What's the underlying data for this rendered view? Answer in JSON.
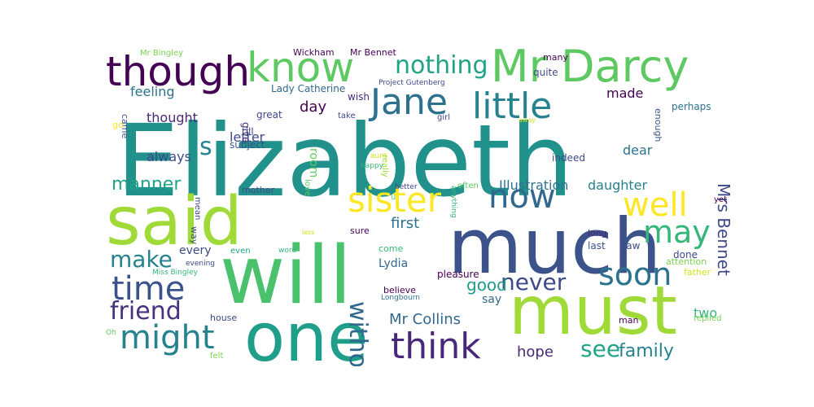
{
  "words": [
    {
      "text": "Elizabeth",
      "color": "#21918c"
    },
    {
      "text": "said",
      "color": "#a0da39"
    },
    {
      "text": "will",
      "color": "#4ac16d"
    },
    {
      "text": "much",
      "color": "#3b528b"
    },
    {
      "text": "one",
      "color": "#1f9e89"
    },
    {
      "text": "must",
      "color": "#a0da39"
    },
    {
      "text": "Mr Darcy",
      "color": "#5ec962"
    },
    {
      "text": "though",
      "color": "#440154"
    },
    {
      "text": "know",
      "color": "#5ec962"
    },
    {
      "text": "nothing",
      "color": "#20a386"
    },
    {
      "text": "Jane",
      "color": "#2c728e"
    },
    {
      "text": "little",
      "color": "#26828e"
    },
    {
      "text": "sister",
      "color": "#fde725"
    },
    {
      "text": "now",
      "color": "#31688e"
    },
    {
      "text": "well",
      "color": "#fde725"
    },
    {
      "text": "may",
      "color": "#35b779"
    },
    {
      "text": "time",
      "color": "#3b528b"
    },
    {
      "text": "might",
      "color": "#26828e"
    },
    {
      "text": "think",
      "color": "#482878"
    },
    {
      "text": "soon",
      "color": "#2c728e"
    },
    {
      "text": "friend",
      "color": "#46327e"
    },
    {
      "text": "make",
      "color": "#26828e"
    },
    {
      "text": "never",
      "color": "#3e4989"
    },
    {
      "text": "without",
      "color": "#31688e"
    },
    {
      "text": "s",
      "color": "#26828e"
    },
    {
      "text": "see",
      "color": "#20a386"
    },
    {
      "text": "family",
      "color": "#26828e"
    },
    {
      "text": "Mrs Bennet",
      "color": "#3e4989"
    },
    {
      "text": "manner",
      "color": "#20a386"
    },
    {
      "text": "day",
      "color": "#440154"
    },
    {
      "text": "good",
      "color": "#1f9e89"
    },
    {
      "text": "Mr Collins",
      "color": "#31688e"
    },
    {
      "text": "hope",
      "color": "#482878"
    },
    {
      "text": "first",
      "color": "#2c728e"
    },
    {
      "text": "Illustration",
      "color": "#2c728e"
    },
    {
      "text": "daughter",
      "color": "#26828e"
    },
    {
      "text": "thought",
      "color": "#482878"
    },
    {
      "text": "feeling",
      "color": "#2c728e"
    },
    {
      "text": "Lydia",
      "color": "#31688e"
    },
    {
      "text": "dear",
      "color": "#2c728e"
    },
    {
      "text": "made",
      "color": "#440154"
    },
    {
      "text": "two",
      "color": "#35b779"
    },
    {
      "text": "always",
      "color": "#3e4989"
    },
    {
      "text": "letter",
      "color": "#3e4989"
    },
    {
      "text": "every",
      "color": "#3e4989"
    },
    {
      "text": "room",
      "color": "#5ec962"
    },
    {
      "text": "pleasure",
      "color": "#440154"
    },
    {
      "text": "say",
      "color": "#31688e"
    },
    {
      "text": "Lady Catherine",
      "color": "#31688e"
    },
    {
      "text": "Mr Bingley",
      "color": "#7ad151"
    },
    {
      "text": "Wickham",
      "color": "#440154"
    },
    {
      "text": "Mr Bennet",
      "color": "#440154"
    },
    {
      "text": "many",
      "color": "#440154"
    },
    {
      "text": "quite",
      "color": "#3e4989"
    },
    {
      "text": "enough",
      "color": "#3b528b"
    },
    {
      "text": "perhaps",
      "color": "#2c728e"
    },
    {
      "text": "Project Gutenberg",
      "color": "#3e4989"
    },
    {
      "text": "wish",
      "color": "#472d7b"
    },
    {
      "text": "give",
      "color": "#472d7b"
    },
    {
      "text": "great",
      "color": "#3e4989"
    },
    {
      "text": "till",
      "color": "#3e4989"
    },
    {
      "text": "subject",
      "color": "#3b528b"
    },
    {
      "text": "take",
      "color": "#3e4989"
    },
    {
      "text": "girl",
      "color": "#3e4989"
    },
    {
      "text": "really",
      "color": "#a0da39"
    },
    {
      "text": "aunt",
      "color": "#d2e21b"
    },
    {
      "text": "happy",
      "color": "#35b779"
    },
    {
      "text": "love",
      "color": "#5ec962"
    },
    {
      "text": "anything",
      "color": "#35b779"
    },
    {
      "text": "away",
      "color": "#d2e21b"
    },
    {
      "text": "indeed",
      "color": "#3e4989"
    },
    {
      "text": "came",
      "color": "#3b528b"
    },
    {
      "text": "go",
      "color": "#fde725"
    },
    {
      "text": "mean",
      "color": "#3e4989"
    },
    {
      "text": "mother",
      "color": "#3e4989"
    },
    {
      "text": "better",
      "color": "#3e4989"
    },
    {
      "text": "often",
      "color": "#5ec962"
    },
    {
      "text": "u",
      "color": "#5ec962"
    },
    {
      "text": "yet",
      "color": "#440154"
    },
    {
      "text": "way",
      "color": "#3e4989"
    },
    {
      "text": "less",
      "color": "#d2e21b"
    },
    {
      "text": "sure",
      "color": "#440154"
    },
    {
      "text": "long",
      "color": "#482878"
    },
    {
      "text": "last",
      "color": "#3b528b"
    },
    {
      "text": "saw",
      "color": "#3e4989"
    },
    {
      "text": "done",
      "color": "#3e4989"
    },
    {
      "text": "attention",
      "color": "#7ad151"
    },
    {
      "text": "father",
      "color": "#d2e21b"
    },
    {
      "text": "even",
      "color": "#20a386"
    },
    {
      "text": "word",
      "color": "#35b779"
    },
    {
      "text": "come",
      "color": "#35b779"
    },
    {
      "text": "evening",
      "color": "#3e4989"
    },
    {
      "text": "Miss Bingley",
      "color": "#35b779"
    },
    {
      "text": "believe",
      "color": "#440154"
    },
    {
      "text": "Longbourn",
      "color": "#2c728e"
    },
    {
      "text": "house",
      "color": "#3e4989"
    },
    {
      "text": "man",
      "color": "#440154"
    },
    {
      "text": "replied",
      "color": "#7ad151"
    },
    {
      "text": "Oh",
      "color": "#5ec962"
    },
    {
      "text": "felt",
      "color": "#7ad151"
    }
  ]
}
